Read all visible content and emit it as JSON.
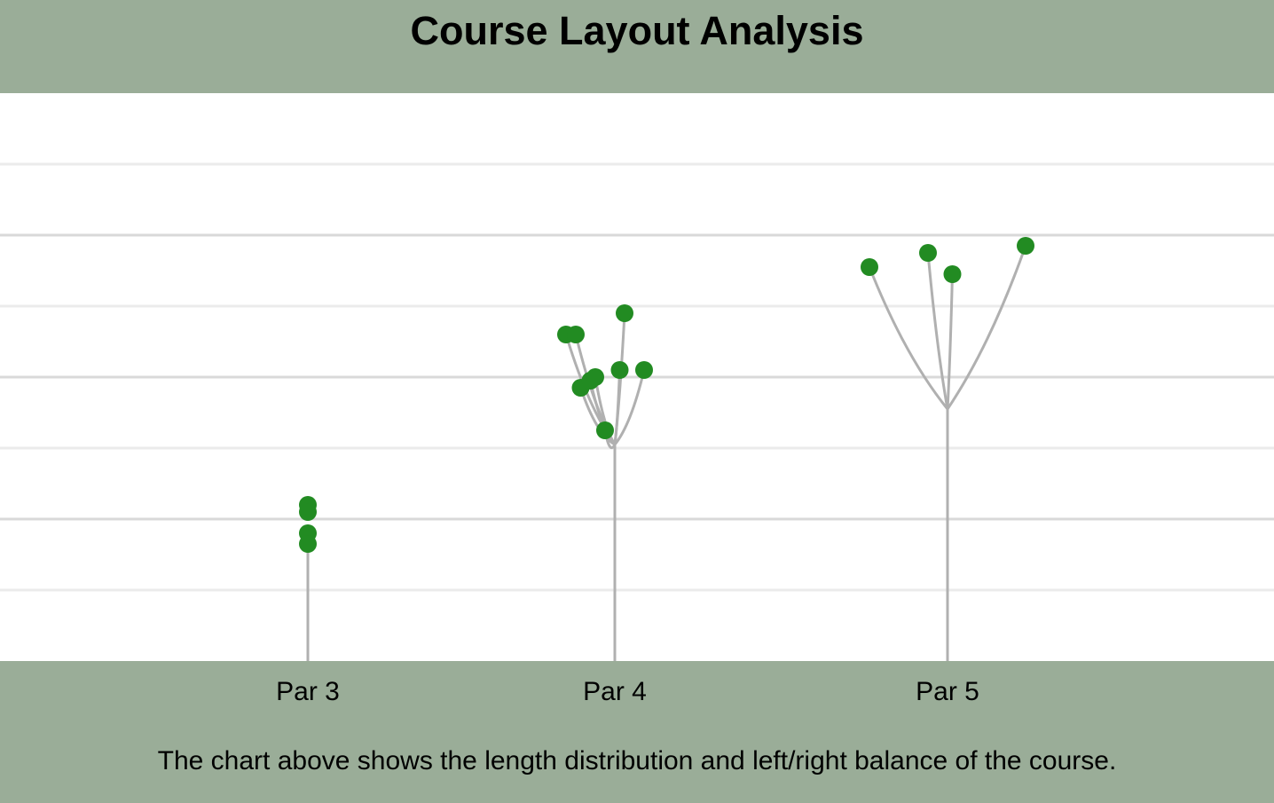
{
  "title": "Course Layout Analysis",
  "caption": "The chart above shows the length distribution and left/right balance of the course.",
  "colors": {
    "background": "#9aad98",
    "plot_background": "#ffffff",
    "marker": "#228b22",
    "stem": "#b0b0b0",
    "grid_major": "#d9d9d9",
    "grid_minor": "#ebebeb"
  },
  "chart_data": {
    "type": "scatter",
    "title": "Course Layout Analysis",
    "xlabel": "",
    "ylabel": "",
    "categories": [
      "Par 3",
      "Par 4",
      "Par 5"
    ],
    "grid": true,
    "ylim": [
      0,
      8
    ],
    "yticks_shown": false,
    "series": [
      {
        "category": "Par 3",
        "points": [
          {
            "x": 0.0,
            "y": 2.2
          },
          {
            "x": 0.0,
            "y": 2.1
          },
          {
            "x": 0.0,
            "y": 1.8
          },
          {
            "x": 0.0,
            "y": 1.65
          }
        ]
      },
      {
        "category": "Par 4",
        "points": [
          {
            "x": -0.5,
            "y": 4.6
          },
          {
            "x": -0.4,
            "y": 4.6
          },
          {
            "x": 0.1,
            "y": 4.9
          },
          {
            "x": -0.35,
            "y": 3.85
          },
          {
            "x": -0.25,
            "y": 3.95
          },
          {
            "x": -0.2,
            "y": 4.0
          },
          {
            "x": 0.05,
            "y": 4.1
          },
          {
            "x": 0.3,
            "y": 4.1
          },
          {
            "x": -0.1,
            "y": 3.25
          }
        ]
      },
      {
        "category": "Par 5",
        "points": [
          {
            "x": -0.8,
            "y": 5.55
          },
          {
            "x": -0.2,
            "y": 5.75
          },
          {
            "x": 0.05,
            "y": 5.45
          },
          {
            "x": 0.8,
            "y": 5.85
          }
        ]
      }
    ]
  }
}
